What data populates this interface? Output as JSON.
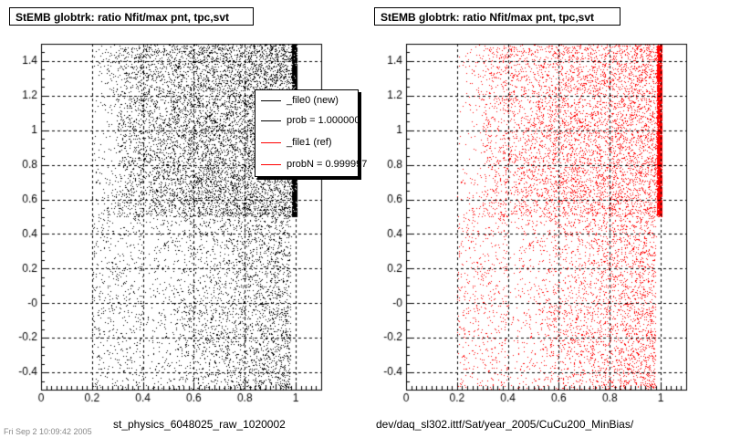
{
  "colors": {
    "ref_black": "#000000",
    "new_red": "#ff0000",
    "grid": "#000000"
  },
  "left_panel": {
    "title": "StEMB globtrk: ratio Nfit/max pnt, tpc,svt",
    "xlabel": "st_physics_6048025_raw_1020002"
  },
  "right_panel": {
    "title": "StEMB globtrk: ratio Nfit/max pnt, tpc,svt",
    "xlabel": "dev/daq_sl302.ittf/Sat/year_2005/CuCu200_MinBias/"
  },
  "legend": {
    "entries": [
      {
        "label": "_file0 (new)",
        "color": "#000000"
      },
      {
        "label": "prob = 1.000000",
        "color": "#000000"
      },
      {
        "label": "_file1 (ref)",
        "color": "#ff0000"
      },
      {
        "label": "probN = 0.999997",
        "color": "#ff0000"
      }
    ]
  },
  "footer": "Fri Sep  2 10:09:42 2005",
  "chart_data": [
    {
      "type": "scatter",
      "title": "StEMB globtrk: ratio Nfit/max pnt, tpc,svt",
      "xlabel": "st_physics_6048025_raw_1020002",
      "ylabel": "",
      "xlim": [
        0,
        1.1
      ],
      "ylim": [
        -0.5,
        1.5
      ],
      "x_ticks": [
        "0",
        "0.2",
        "0.4",
        "0.6",
        "0.8",
        "1"
      ],
      "y_ticks": [
        "-0.4",
        "-0.2",
        "-0",
        "0.2",
        "0.4",
        "0.6",
        "0.8",
        "1",
        "1.2",
        "1.4"
      ],
      "grid": true,
      "series": [
        {
          "name": "_file0 (new)",
          "color": "#000000"
        }
      ],
      "description_of_density": "dense band for y 0.5-1.5 over x 0.2-1.0, strong vertical stripes near x 0.95-1.0; sparser points for y -0.5-0.5 over x 0.4-1.0"
    },
    {
      "type": "scatter",
      "title": "StEMB globtrk: ratio Nfit/max pnt, tpc,svt",
      "xlabel": "dev/daq_sl302.ittf/Sat/year_2005/CuCu200_MinBias/",
      "ylabel": "",
      "xlim": [
        0,
        1.1
      ],
      "ylim": [
        -0.5,
        1.5
      ],
      "x_ticks": [
        "0",
        "0.2",
        "0.4",
        "0.6",
        "0.8",
        "1"
      ],
      "y_ticks": [
        "-0.4",
        "-0.2",
        "-0",
        "0.2",
        "0.4",
        "0.6",
        "0.8",
        "1",
        "1.2",
        "1.4"
      ],
      "grid": true,
      "series": [
        {
          "name": "_file1 (ref)",
          "color": "#ff0000"
        }
      ]
    }
  ]
}
